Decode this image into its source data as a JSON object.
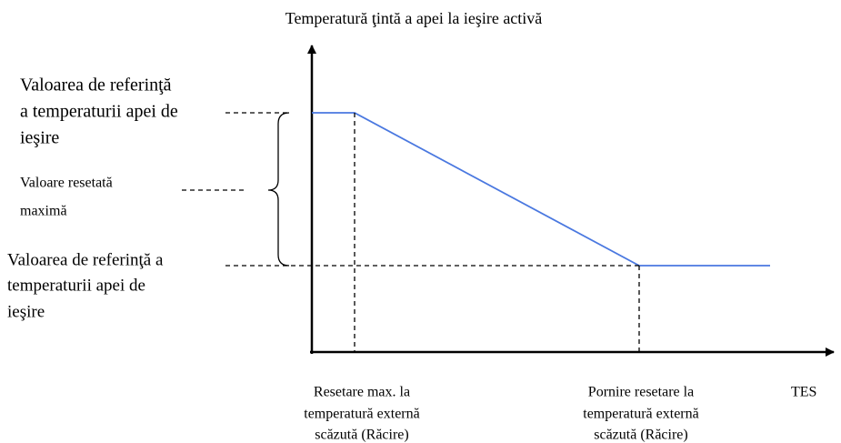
{
  "title": "Temperatură ţintă a apei la ieşire activă",
  "left_labels": [
    {
      "lines": [
        "Valoarea de referinţă",
        "a temperaturii apei de",
        "ieşire"
      ]
    },
    {
      "lines": [
        "Valoare resetată",
        "maximă"
      ]
    },
    {
      "lines": [
        "Valoarea de referinţă a",
        "temperaturii apei de",
        "ieşire"
      ]
    }
  ],
  "bottom_labels": [
    {
      "lines": [
        "Resetare max. la",
        "temperatură externă",
        "scăzută (Răcire)"
      ]
    },
    {
      "lines": [
        "Pornire resetare la",
        "temperatură externă",
        "scăzută (Răcire)"
      ]
    }
  ],
  "x_axis_label": "TES"
}
